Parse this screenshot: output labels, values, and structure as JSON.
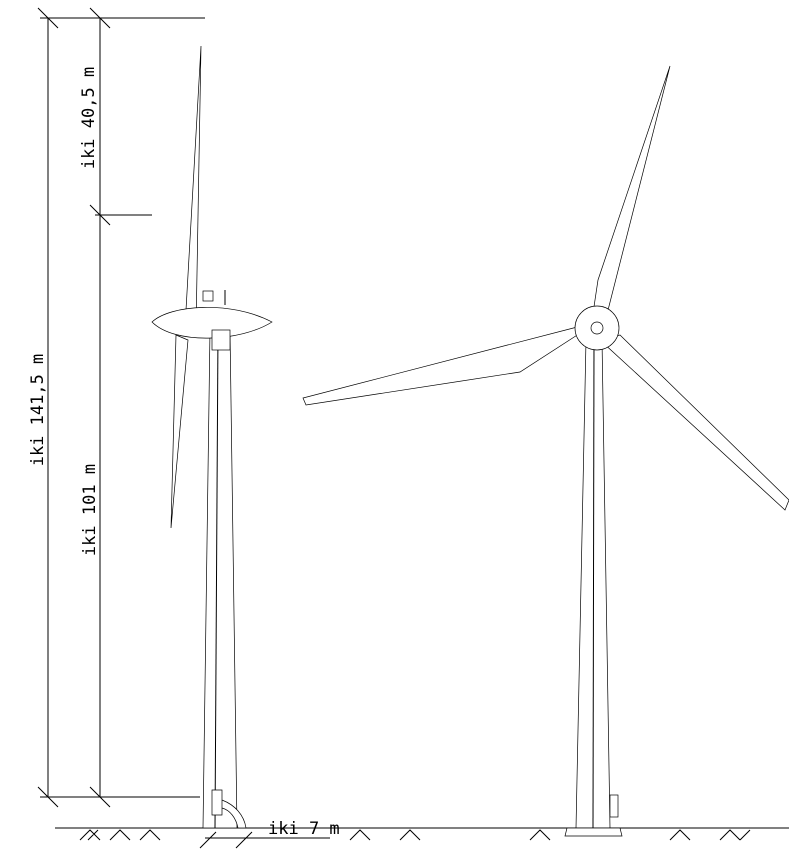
{
  "dimensions": {
    "total_height": "iki 141,5 m",
    "blade_length": "iki 40,5 m",
    "hub_height": "iki 101 m",
    "foundation": "iki 7 m"
  }
}
